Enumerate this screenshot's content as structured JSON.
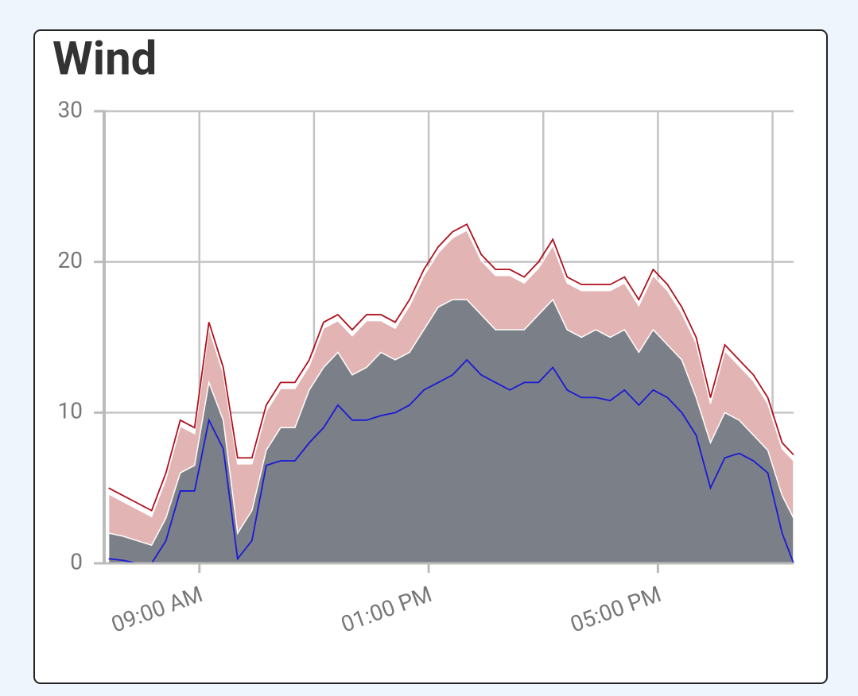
{
  "chart_data": {
    "type": "line",
    "title": "Wind",
    "x": [
      "07:25 AM",
      "07:40 AM",
      "07:55 AM",
      "08:10 AM",
      "08:25 AM",
      "08:40 AM",
      "08:55 AM",
      "09:10 AM",
      "09:25 AM",
      "09:40 AM",
      "09:55 AM",
      "10:10 AM",
      "10:25 AM",
      "10:40 AM",
      "10:55 AM",
      "11:10 AM",
      "11:25 AM",
      "11:40 AM",
      "11:55 AM",
      "12:10 PM",
      "12:25 PM",
      "12:40 PM",
      "12:55 PM",
      "01:10 PM",
      "01:25 PM",
      "01:40 PM",
      "01:55 PM",
      "02:10 PM",
      "02:25 PM",
      "02:40 PM",
      "02:55 PM",
      "03:10 PM",
      "03:25 PM",
      "03:40 PM",
      "03:55 PM",
      "04:10 PM",
      "04:25 PM",
      "04:40 PM",
      "04:55 PM",
      "05:10 PM",
      "05:25 PM",
      "05:40 PM",
      "05:55 PM",
      "06:10 PM",
      "06:25 PM",
      "06:40 PM",
      "06:55 PM",
      "07:10 PM",
      "07:22 PM"
    ],
    "series": [
      {
        "kind": "area",
        "color": "#e3b4b4",
        "values": [
          4.6,
          4.1,
          3.6,
          3.1,
          5.6,
          9.1,
          8.6,
          15.6,
          12.6,
          6.6,
          6.6,
          10.1,
          11.6,
          11.6,
          13.1,
          15.6,
          16.1,
          15.1,
          16.1,
          16.1,
          15.6,
          17.1,
          19.1,
          20.6,
          21.6,
          22.1,
          20.1,
          19.1,
          19.1,
          18.6,
          19.6,
          21.1,
          18.6,
          18.1,
          18.1,
          18.1,
          18.6,
          17.1,
          19.1,
          18.1,
          16.6,
          14.6,
          10.6,
          14.1,
          13.1,
          12.1,
          10.6,
          7.6,
          6.8
        ]
      },
      {
        "kind": "area",
        "color": "#7b7f87",
        "values": [
          2,
          1.8,
          1.5,
          1.2,
          3,
          6,
          6.5,
          12,
          9.5,
          2,
          3.5,
          7.5,
          9,
          9,
          11.5,
          13,
          14,
          12.5,
          13,
          14,
          13.5,
          14,
          15.5,
          17,
          17.5,
          17.5,
          16.5,
          15.5,
          15.5,
          15.5,
          16.5,
          17.5,
          15.5,
          15,
          15.5,
          15,
          15.5,
          14,
          15.5,
          14.5,
          13.5,
          11,
          8,
          10,
          9.5,
          8.5,
          7.5,
          4.5,
          3
        ]
      },
      {
        "kind": "line",
        "color": "#b0101c",
        "values": [
          5,
          4.5,
          4,
          3.5,
          6,
          9.5,
          9,
          16,
          13,
          7,
          7,
          10.5,
          12,
          12,
          13.5,
          16,
          16.5,
          15.5,
          16.5,
          16.5,
          16,
          17.5,
          19.5,
          21,
          22,
          22.5,
          20.5,
          19.5,
          19.5,
          19,
          20,
          21.5,
          19,
          18.5,
          18.5,
          18.5,
          19,
          17.5,
          19.5,
          18.5,
          17,
          15,
          11,
          14.5,
          13.5,
          12.5,
          11,
          8,
          7.2
        ]
      },
      {
        "kind": "line",
        "color": "#1a1ad8",
        "values": [
          0.3,
          0.2,
          0,
          0,
          1.5,
          4.8,
          4.8,
          9.5,
          7.6,
          0.3,
          1.5,
          6.5,
          6.8,
          6.8,
          8,
          9,
          10.5,
          9.5,
          9.5,
          9.8,
          10,
          10.5,
          11.5,
          12,
          12.5,
          13.5,
          12.5,
          12,
          11.5,
          12,
          12,
          13,
          11.5,
          11,
          11,
          10.8,
          11.5,
          10.5,
          11.5,
          11,
          10,
          8.5,
          5,
          7,
          7.3,
          6.8,
          6,
          2,
          0
        ]
      }
    ],
    "xlim": [
      "07:22 AM",
      "07:22 PM"
    ],
    "xticks": [
      "09:00 AM",
      "01:00 PM",
      "05:00 PM"
    ],
    "xgrid": [
      "09:00 AM",
      "11:00 AM",
      "01:00 PM",
      "03:00 PM",
      "05:00 PM",
      "07:00 PM"
    ],
    "ylim": [
      0,
      30
    ],
    "yticks": [
      0,
      10,
      20,
      30
    ],
    "grid": true
  }
}
